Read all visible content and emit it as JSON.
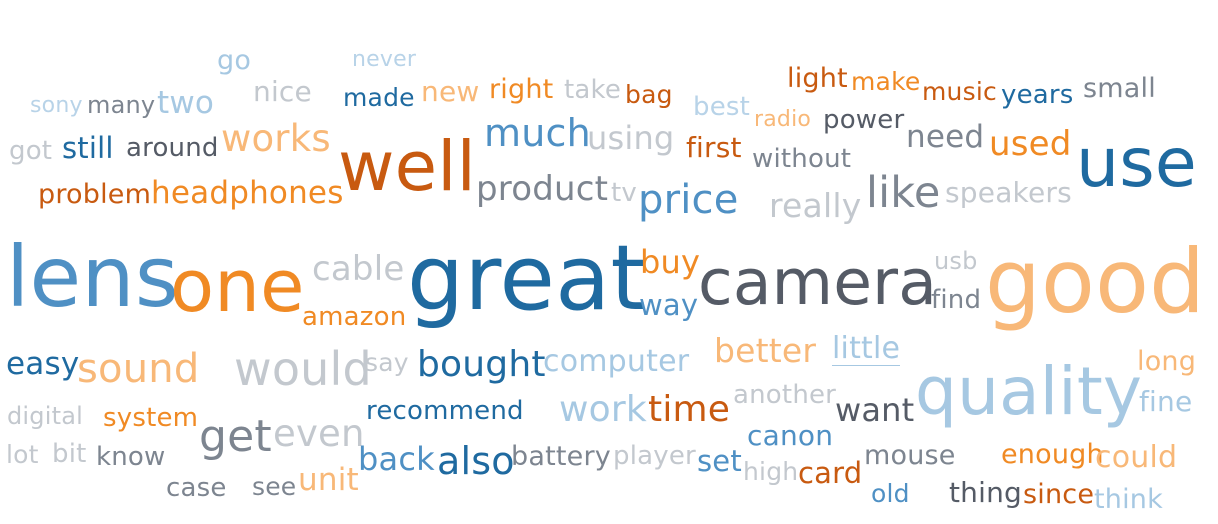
{
  "palette": {
    "dark_blue": "#1f6aa0",
    "mid_blue": "#4f90c4",
    "light_blue": "#a6c8e2",
    "pale_blue": "#b8d3e8",
    "dark_orange": "#c85a10",
    "orange": "#f08a24",
    "light_orange": "#f8b878",
    "dark_gray": "#555b66",
    "gray": "#7d8590",
    "light_gray": "#c3c8ce"
  },
  "words": [
    {
      "text": "go",
      "color": "light_blue"
    },
    {
      "text": "never",
      "color": "pale_blue"
    },
    {
      "text": "light",
      "color": "dark_orange"
    },
    {
      "text": "make",
      "color": "orange"
    },
    {
      "text": "music",
      "color": "dark_orange"
    },
    {
      "text": "years",
      "color": "dark_blue"
    },
    {
      "text": "small",
      "color": "gray"
    },
    {
      "text": "nice",
      "color": "light_gray"
    },
    {
      "text": "made",
      "color": "dark_blue"
    },
    {
      "text": "new",
      "color": "light_orange"
    },
    {
      "text": "right",
      "color": "orange"
    },
    {
      "text": "take",
      "color": "light_gray"
    },
    {
      "text": "bag",
      "color": "dark_orange"
    },
    {
      "text": "sony",
      "color": "pale_blue"
    },
    {
      "text": "many",
      "color": "gray"
    },
    {
      "text": "two",
      "color": "light_blue"
    },
    {
      "text": "best",
      "color": "pale_blue"
    },
    {
      "text": "radio",
      "color": "light_orange"
    },
    {
      "text": "power",
      "color": "dark_gray"
    },
    {
      "text": "got",
      "color": "light_gray"
    },
    {
      "text": "still",
      "color": "dark_blue"
    },
    {
      "text": "around",
      "color": "dark_gray"
    },
    {
      "text": "works",
      "color": "light_orange"
    },
    {
      "text": "much",
      "color": "mid_blue"
    },
    {
      "text": "using",
      "color": "light_gray"
    },
    {
      "text": "first",
      "color": "dark_orange"
    },
    {
      "text": "without",
      "color": "gray"
    },
    {
      "text": "need",
      "color": "gray"
    },
    {
      "text": "used",
      "color": "orange"
    },
    {
      "text": "use",
      "color": "dark_blue"
    },
    {
      "text": "well",
      "color": "dark_orange"
    },
    {
      "text": "problem",
      "color": "dark_orange"
    },
    {
      "text": "headphones",
      "color": "orange"
    },
    {
      "text": "product",
      "color": "gray"
    },
    {
      "text": "tv",
      "color": "light_gray"
    },
    {
      "text": "price",
      "color": "mid_blue"
    },
    {
      "text": "like",
      "color": "gray"
    },
    {
      "text": "speakers",
      "color": "light_gray"
    },
    {
      "text": "really",
      "color": "light_gray"
    },
    {
      "text": "lens",
      "color": "mid_blue"
    },
    {
      "text": "one",
      "color": "orange"
    },
    {
      "text": "cable",
      "color": "light_gray"
    },
    {
      "text": "great",
      "color": "dark_blue"
    },
    {
      "text": "buy",
      "color": "orange"
    },
    {
      "text": "way",
      "color": "mid_blue"
    },
    {
      "text": "camera",
      "color": "dark_gray"
    },
    {
      "text": "usb",
      "color": "light_gray"
    },
    {
      "text": "find",
      "color": "gray"
    },
    {
      "text": "good",
      "color": "light_orange"
    },
    {
      "text": "amazon",
      "color": "orange"
    },
    {
      "text": "easy",
      "color": "dark_blue"
    },
    {
      "text": "sound",
      "color": "light_orange"
    },
    {
      "text": "would",
      "color": "light_gray"
    },
    {
      "text": "say",
      "color": "light_gray"
    },
    {
      "text": "bought",
      "color": "dark_blue"
    },
    {
      "text": "computer",
      "color": "light_blue"
    },
    {
      "text": "better",
      "color": "light_orange"
    },
    {
      "text": "little",
      "color": "light_blue"
    },
    {
      "text": "long",
      "color": "light_orange"
    },
    {
      "text": "quality",
      "color": "light_blue"
    },
    {
      "text": "digital",
      "color": "light_gray"
    },
    {
      "text": "system",
      "color": "orange"
    },
    {
      "text": "recommend",
      "color": "dark_blue"
    },
    {
      "text": "work",
      "color": "light_blue"
    },
    {
      "text": "time",
      "color": "dark_orange"
    },
    {
      "text": "another",
      "color": "light_gray"
    },
    {
      "text": "want",
      "color": "dark_gray"
    },
    {
      "text": "fine",
      "color": "light_blue"
    },
    {
      "text": "get",
      "color": "gray"
    },
    {
      "text": "even",
      "color": "light_gray"
    },
    {
      "text": "canon",
      "color": "mid_blue"
    },
    {
      "text": "lot",
      "color": "light_gray"
    },
    {
      "text": "bit",
      "color": "light_gray"
    },
    {
      "text": "know",
      "color": "gray"
    },
    {
      "text": "back",
      "color": "mid_blue"
    },
    {
      "text": "also",
      "color": "dark_blue"
    },
    {
      "text": "battery",
      "color": "gray"
    },
    {
      "text": "player",
      "color": "light_gray"
    },
    {
      "text": "set",
      "color": "mid_blue"
    },
    {
      "text": "high",
      "color": "light_gray"
    },
    {
      "text": "card",
      "color": "dark_orange"
    },
    {
      "text": "mouse",
      "color": "gray"
    },
    {
      "text": "enough",
      "color": "orange"
    },
    {
      "text": "could",
      "color": "light_orange"
    },
    {
      "text": "case",
      "color": "gray"
    },
    {
      "text": "see",
      "color": "gray"
    },
    {
      "text": "unit",
      "color": "light_orange"
    },
    {
      "text": "old",
      "color": "mid_blue"
    },
    {
      "text": "thing",
      "color": "dark_gray"
    },
    {
      "text": "since",
      "color": "dark_orange"
    },
    {
      "text": "think",
      "color": "light_blue"
    }
  ]
}
